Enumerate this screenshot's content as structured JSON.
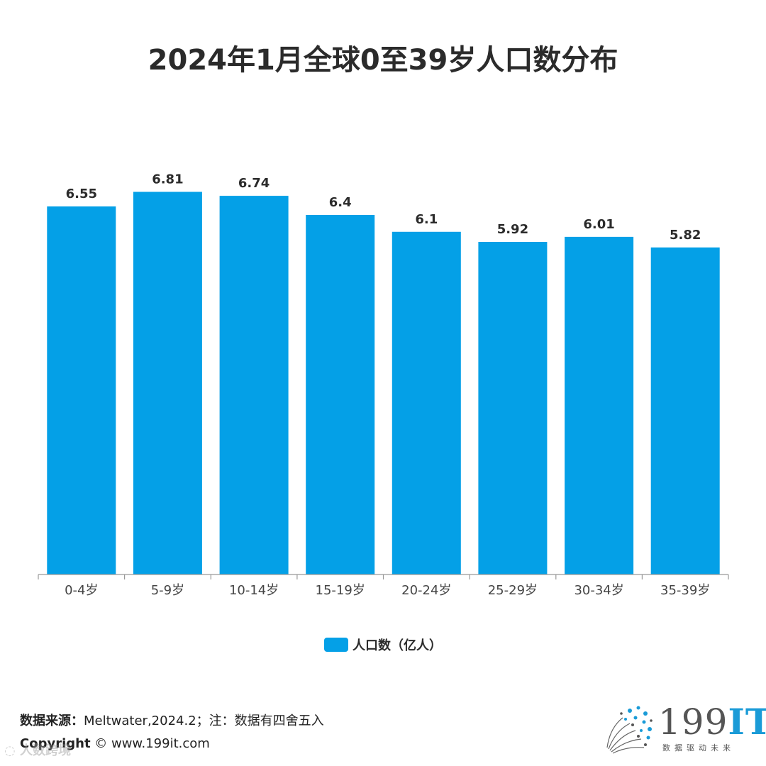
{
  "chart_data": {
    "type": "bar",
    "title": "2024年1月全球0至39岁人口数分布",
    "categories": [
      "0-4岁",
      "5-9岁",
      "10-14岁",
      "15-19岁",
      "20-24岁",
      "25-29岁",
      "30-34岁",
      "35-39岁"
    ],
    "series": [
      {
        "name": "人口数（亿人）",
        "values": [
          6.55,
          6.81,
          6.74,
          6.4,
          6.1,
          5.92,
          6.01,
          5.82
        ],
        "labels": [
          "6.55",
          "6.81",
          "6.74",
          "6.4",
          "6.1",
          "5.92",
          "6.01",
          "5.82"
        ]
      }
    ],
    "ylim": [
      0,
      7.7
    ],
    "grid": false,
    "legend_position": "bottom-center",
    "colors": {
      "bar": "#04a0e7",
      "axis": "#999999",
      "text": "#2b2b2b"
    }
  },
  "footer": {
    "source_label": "数据来源：",
    "source_text": "Meltwater,2024.2；注：数据有四舍五入",
    "copyright_label": "Copyright",
    "copyright_text": " ©  www.199it.com"
  },
  "logo": {
    "main": "199",
    "accent": "IT",
    "tagline": "数据驱动未来",
    "icon": "dandelion-dots-icon"
  },
  "watermark": {
    "text": "人数跨境",
    "icon": "chat-bubble-icon"
  }
}
